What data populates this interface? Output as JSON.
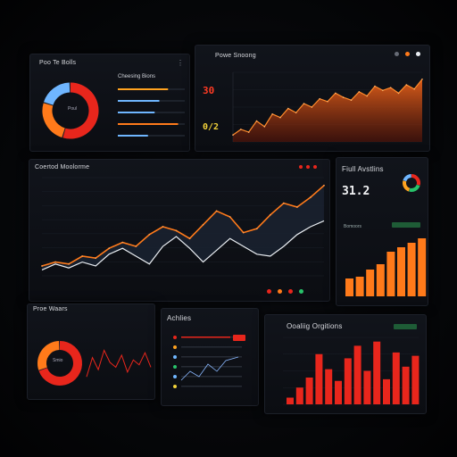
{
  "colors": {
    "orange": "#ff7a1a",
    "red": "#e8261c",
    "amber": "#ffa21f",
    "blue": "#6fb6ff",
    "white": "#e9edf2",
    "green": "#28c26a",
    "yellow": "#f2d23a"
  },
  "panels": {
    "top_left": {
      "title": "Poo Te Bolls",
      "donut_label": "Poul",
      "list_title": "Cheesing Bions",
      "donut_values": [
        55,
        25,
        20
      ]
    },
    "top_right": {
      "title": "Powe Snoong",
      "value_red": "30",
      "value_yellow": "0/2"
    },
    "middle": {
      "title": "Coertod Moolorme"
    },
    "right_mid": {
      "title": "Fiull Avstlins",
      "big_value": "31.2",
      "subtitle": "Bomoors"
    },
    "bottom_left": {
      "title": "Proe Waars",
      "donut_label": "Smio"
    },
    "bottom_mid": {
      "title": "Achlies"
    },
    "bottom_right": {
      "title": "Ooaliig Orgitions"
    }
  },
  "chart_data": [
    {
      "type": "bar",
      "title": "",
      "values": [
        0.75,
        0.62,
        0.55,
        0.9,
        0.45
      ],
      "colors": [
        "#ffa21f",
        "#6fb6ff",
        "#6fb6ff",
        "#ff7a1a",
        "#6fb6ff"
      ]
    },
    {
      "type": "area",
      "title": "",
      "values": [
        10,
        18,
        14,
        30,
        22,
        40,
        35,
        48,
        42,
        55,
        50,
        62,
        58,
        70,
        64,
        60,
        72,
        66,
        80,
        74,
        78,
        70,
        82,
        76,
        90
      ]
    },
    {
      "type": "line",
      "title": "",
      "series": [
        {
          "color": "#ff7a1a",
          "values": [
            10,
            14,
            12,
            20,
            18,
            28,
            34,
            30,
            42,
            50,
            46,
            38,
            52,
            66,
            60,
            44,
            48,
            62,
            74,
            70,
            80,
            92
          ]
        },
        {
          "color": "#e9edf2",
          "values": [
            6,
            12,
            8,
            14,
            10,
            22,
            28,
            20,
            12,
            30,
            40,
            28,
            14,
            26,
            38,
            30,
            22,
            20,
            30,
            42,
            50,
            56
          ]
        }
      ]
    },
    {
      "type": "bar",
      "title": "",
      "values": [
        20,
        22,
        30,
        36,
        50,
        55,
        60,
        65
      ]
    },
    {
      "type": "line",
      "title": "",
      "values": [
        20,
        60,
        35,
        75,
        50,
        40,
        65,
        30,
        55,
        45,
        70,
        40
      ]
    },
    {
      "type": "bar",
      "title": "",
      "values": [
        8,
        20,
        32,
        60,
        42,
        28,
        55,
        70,
        40,
        75,
        30,
        62,
        45,
        58
      ]
    }
  ]
}
